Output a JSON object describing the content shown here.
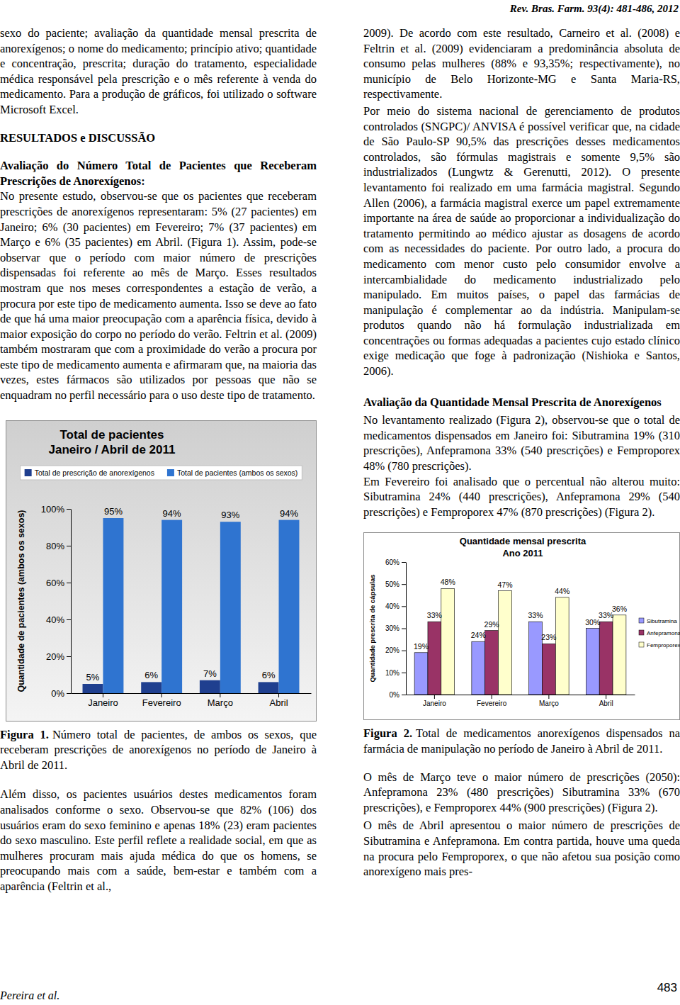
{
  "header": {
    "journal": "Rev. Bras. Farm. 93(4): 481-486, 2012"
  },
  "left_column": {
    "continuation": "sexo do paciente; avaliação da quantidade mensal prescrita de anorexígenos; o nome do medicamento; princípio ativo; quantidade e concentração, prescrita; duração do tratamento, especialidade médica responsável pela prescrição e o mês referente à venda do medicamento. Para a produção de gráficos, foi utilizado o software Microsoft Excel.",
    "section_heading": "RESULTADOS e DISCUSSÃO",
    "subsection_heading": "Avaliação do Número Total de Pacientes que Receberam Prescrições de Anorexígenos:",
    "paragraphs_before_figure": [
      "No presente estudo, observou-se que os pacientes que receberam prescrições de anorexígenos representaram: 5% (27 pacientes) em Janeiro; 6% (30 pacientes) em Fevereiro; 7% (37 pacientes) em Março e 6% (35 pacientes) em Abril. (Figura 1). Assim, pode-se observar que o período com maior número de prescrições dispensadas foi referente ao mês de Março. Esses resultados mostram que nos meses correspondentes a estação de verão, a procura por este tipo de medicamento aumenta. Isso se deve ao fato de que há uma maior preocupação com a aparência física, devido à maior exposição do corpo no período do verão. Feltrin et al. (2009) também mostraram que com a proximidade do verão a procura por este tipo de medicamento aumenta e afirmaram que, na maioria das vezes, estes fármacos são utilizados por pessoas que não se enquadram no perfil necessário para o uso deste tipo de tratamento."
    ],
    "figure_caption": {
      "label": "Figura 1.",
      "text": "Número total de pacientes, de ambos os sexos, que receberam prescrições de anorexígenos no período de Janeiro à Abril de 2011."
    },
    "paragraphs_after_figure": [
      "Além disso, os pacientes usuários destes medicamentos foram analisados conforme o sexo. Observou-se que 82% (106) dos usuários eram do sexo feminino e apenas 18% (23) eram pacientes do sexo masculino. Este perfil reflete a realidade social, em que as mulheres procuram mais ajuda médica do que os homens, se preocupando mais com a saúde, bem-estar e também com a aparência (Feltrin et al.,"
    ]
  },
  "right_column": {
    "paragraphs_top": [
      "2009). De acordo com este resultado, Carneiro et al. (2008) e Feltrin et al. (2009) evidenciaram a predominância absoluta de consumo pelas mulheres (88% e 93,35%; respectivamente), no município de Belo Horizonte-MG e Santa Maria-RS, respectivamente.",
      "Por meio do sistema nacional de gerenciamento de produtos controlados (SNGPC)/ ANVISA é possível verificar que, na cidade de São Paulo-SP 90,5% das prescrições desses medicamentos controlados, são fórmulas magistrais e somente 9,5% são industrializados (Lungwtz & Gerenutti, 2012). O presente levantamento foi realizado em uma farmácia magistral. Segundo Allen (2006), a farmácia magistral exerce um papel extremamente importante na área de saúde ao proporcionar a individualização do tratamento permitindo ao médico ajustar as dosagens de acordo com as necessidades do paciente. Por outro lado, a procura do medicamento com menor custo pelo consumidor envolve a intercambialidade do medicamento industrializado pelo manipulado. Em muitos países, o papel das farmácias de manipulação é complementar ao da indústria. Manipulam-se produtos quando não há formulação industrializada em concentrações ou formas adequadas a pacientes cujo estado clínico exige medicação que foge à padronização (Nishioka e Santos, 2006)."
    ],
    "subsection_heading": "Avaliação da Quantidade Mensal Prescrita de Anorexígenos",
    "paragraphs_before_figure": [
      "No levantamento realizado (Figura 2), observou-se que o total de medicamentos dispensados em Janeiro foi: Sibutramina 19% (310 prescrições), Anfepramona 33% (540 prescrições) e Femproporex 48% (780 prescrições).",
      "Em Fevereiro foi analisado que o percentual não alterou muito: Sibutramina 24% (440 prescrições), Anfepramona 29% (540 prescrições) e Femproporex 47% (870 prescrições) (Figura 2)."
    ],
    "figure_caption": {
      "label": "Figura 2.",
      "text": "Total de medicamentos anorexígenos dispensados na farmácia de manipulação no período de Janeiro à Abril de 2011."
    },
    "paragraphs_after_figure": [
      "O mês de Março teve o maior número de prescrições (2050): Anfepramona 23% (480 prescrições) Sibutramina 33% (670 prescrições), e Femproporex 44% (900 prescrições) (Figura 2).",
      "O mês de Abril apresentou o maior número de prescrições de Sibutramina e Anfepramona. Em contra partida, houve uma queda na procura pelo Femproporex, o que não afetou sua posição como anorexígeno mais pres-"
    ]
  },
  "footer": {
    "author": "Pereira et al.",
    "page": 483
  },
  "chart_data": [
    {
      "type": "bar",
      "title": "Total de pacientes",
      "subtitle": "Janeiro / Abril de 2011",
      "ylabel": "Quantidade de pacientes (ambos os sexos)",
      "categories": [
        "Janeiro",
        "Fevereiro",
        "Março",
        "Abril"
      ],
      "series": [
        {
          "name": "Total de prescrição de anorexígenos",
          "color": "#1f3f8f",
          "values": [
            5,
            6,
            7,
            6
          ],
          "value_labels": [
            "5%",
            "6%",
            "7%",
            "6%"
          ]
        },
        {
          "name": "Total de pacientes (ambos os sexos)",
          "color": "#2f74d0",
          "values": [
            95,
            94,
            93,
            94
          ],
          "value_labels": [
            "95%",
            "94%",
            "93%",
            "94%"
          ]
        }
      ],
      "ylim": [
        0,
        100
      ],
      "yticks": [
        {
          "value": 0,
          "label": "0%"
        },
        {
          "value": 20,
          "label": "20%"
        },
        {
          "value": 40,
          "label": "40%"
        },
        {
          "value": 60,
          "label": "60%"
        },
        {
          "value": 80,
          "label": "80%"
        },
        {
          "value": 100,
          "label": "100%"
        }
      ],
      "data_labels": true,
      "legend": "top"
    },
    {
      "type": "bar",
      "title": "Quantidade mensal prescrita",
      "subtitle": "Ano 2011",
      "ylabel": "Quantidade prescrita de cápsulas",
      "categories": [
        "Janeiro",
        "Fevereiro",
        "Março",
        "Abril"
      ],
      "series": [
        {
          "name": "Sibutramina",
          "color": "#9999ff",
          "values": [
            19,
            24,
            33,
            30
          ],
          "value_labels": [
            "19%",
            "24%",
            "33%",
            "30%"
          ]
        },
        {
          "name": "Anfepramona",
          "color": "#993366",
          "values": [
            33,
            29,
            23,
            33
          ],
          "value_labels": [
            "33%",
            "29%",
            "23%",
            "33%"
          ]
        },
        {
          "name": "Femproporex",
          "color": "#ffffcc",
          "values": [
            48,
            47,
            44,
            36
          ],
          "value_labels": [
            "48%",
            "47%",
            "44%",
            "36%"
          ]
        }
      ],
      "ylim": [
        0,
        60
      ],
      "yticks": [
        {
          "value": 0,
          "label": "0%"
        },
        {
          "value": 10,
          "label": "10%"
        },
        {
          "value": 20,
          "label": "20%"
        },
        {
          "value": 30,
          "label": "30%"
        },
        {
          "value": 40,
          "label": "40%"
        },
        {
          "value": 50,
          "label": "50%"
        },
        {
          "value": 60,
          "label": "60%"
        }
      ],
      "data_labels": true,
      "legend": "right"
    }
  ]
}
